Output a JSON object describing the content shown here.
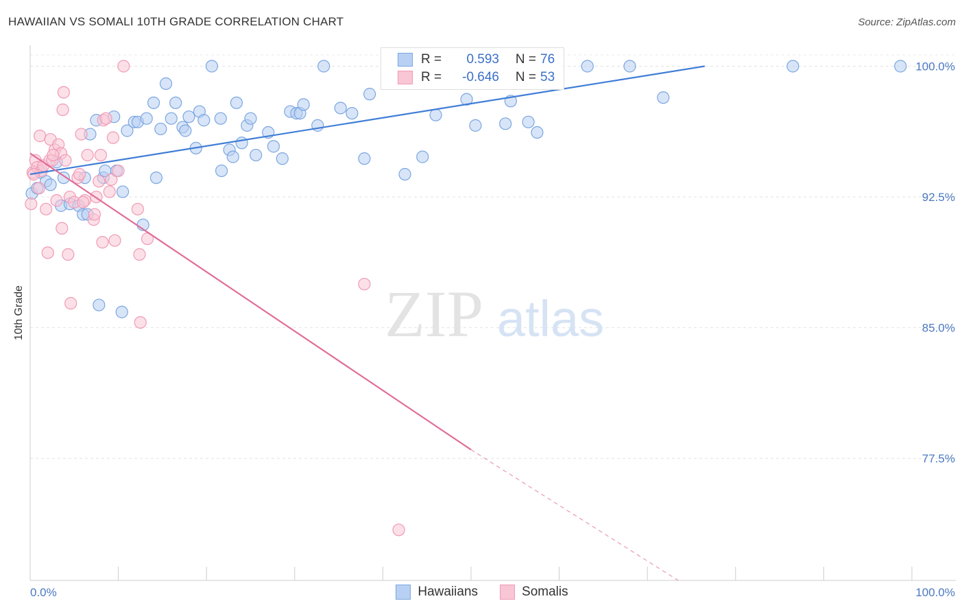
{
  "header": {
    "title": "HAWAIIAN VS SOMALI 10TH GRADE CORRELATION CHART",
    "source": "Source: ZipAtlas.com"
  },
  "watermark": {
    "zip": "ZIP",
    "atlas": "atlas"
  },
  "legend": {
    "rows": [
      {
        "r_label": "R =",
        "r_value": "0.593",
        "n_label": "N =",
        "n_value": "76",
        "color": "#7aa6e0",
        "fill": "#b8d0f3"
      },
      {
        "r_label": "R =",
        "r_value": "-0.646",
        "n_label": "N =",
        "n_value": "53",
        "color": "#f09ab5",
        "fill": "#f9c6d5"
      }
    ]
  },
  "bottom_legend": {
    "items": [
      {
        "label": "Hawaiians"
      },
      {
        "label": "Somalis"
      }
    ]
  },
  "chart_data": {
    "type": "scatter",
    "title": "HAWAIIAN VS SOMALI 10TH GRADE CORRELATION CHART",
    "xlabel": "",
    "ylabel": "10th Grade",
    "xlim": [
      0,
      100
    ],
    "ylim": [
      70.5,
      101.2
    ],
    "x_ticks": [
      "0.0%",
      "100.0%"
    ],
    "y_ticks": [
      {
        "value": 100,
        "label": "100.0%"
      },
      {
        "value": 92.5,
        "label": "92.5%"
      },
      {
        "value": 85,
        "label": "85.0%"
      },
      {
        "value": 77.5,
        "label": "77.5%"
      }
    ],
    "grid": true,
    "legend_position": "top-center",
    "series": [
      {
        "name": "Hawaiians",
        "color": "#3f7dd6",
        "point_fill": "#b8d0f3",
        "point_stroke": "#7aa6e0",
        "trend": {
          "x": [
            0,
            76.5
          ],
          "y": [
            93.8,
            100.0
          ]
        },
        "points": [
          [
            0.2,
            92.7
          ],
          [
            0.8,
            93.0
          ],
          [
            1.2,
            93.9
          ],
          [
            1.8,
            93.4
          ],
          [
            2.3,
            93.2
          ],
          [
            3.0,
            94.5
          ],
          [
            3.5,
            92.0
          ],
          [
            3.8,
            93.6
          ],
          [
            4.5,
            92.1
          ],
          [
            5.5,
            92.0
          ],
          [
            6.0,
            91.5
          ],
          [
            6.2,
            93.6
          ],
          [
            6.8,
            96.1
          ],
          [
            7.5,
            96.9
          ],
          [
            8.3,
            93.6
          ],
          [
            8.5,
            94.0
          ],
          [
            9.5,
            97.1
          ],
          [
            9.8,
            94.0
          ],
          [
            10.5,
            92.8
          ],
          [
            11.0,
            96.3
          ],
          [
            11.8,
            96.8
          ],
          [
            12.2,
            96.8
          ],
          [
            12.8,
            90.9
          ],
          [
            13.2,
            97.0
          ],
          [
            14.0,
            97.9
          ],
          [
            14.3,
            93.6
          ],
          [
            14.8,
            96.4
          ],
          [
            15.4,
            99.0
          ],
          [
            16.0,
            97.0
          ],
          [
            16.5,
            97.9
          ],
          [
            17.3,
            96.5
          ],
          [
            17.6,
            96.3
          ],
          [
            18.0,
            97.1
          ],
          [
            18.8,
            95.3
          ],
          [
            19.2,
            97.4
          ],
          [
            19.7,
            96.9
          ],
          [
            20.6,
            100.0
          ],
          [
            21.6,
            97.0
          ],
          [
            21.7,
            94.0
          ],
          [
            22.6,
            95.2
          ],
          [
            23.0,
            94.8
          ],
          [
            23.4,
            97.9
          ],
          [
            24.0,
            95.6
          ],
          [
            24.6,
            96.6
          ],
          [
            25.0,
            97.0
          ],
          [
            25.6,
            94.9
          ],
          [
            27.0,
            96.2
          ],
          [
            27.6,
            95.4
          ],
          [
            28.6,
            94.7
          ],
          [
            29.5,
            97.4
          ],
          [
            30.2,
            97.3
          ],
          [
            30.6,
            97.3
          ],
          [
            31.0,
            97.8
          ],
          [
            32.6,
            96.6
          ],
          [
            33.3,
            100.0
          ],
          [
            35.2,
            97.6
          ],
          [
            36.5,
            97.3
          ],
          [
            37.9,
            94.7
          ],
          [
            38.5,
            98.4
          ],
          [
            42.5,
            93.8
          ],
          [
            44.5,
            94.8
          ],
          [
            46.0,
            97.2
          ],
          [
            49.5,
            98.1
          ],
          [
            50.5,
            96.6
          ],
          [
            53.9,
            96.7
          ],
          [
            54.5,
            98.0
          ],
          [
            56.5,
            96.8
          ],
          [
            57.5,
            96.2
          ],
          [
            63.2,
            100.0
          ],
          [
            68.0,
            100.0
          ],
          [
            71.8,
            98.2
          ],
          [
            86.5,
            100.0
          ],
          [
            98.7,
            100.0
          ],
          [
            7.8,
            86.3
          ],
          [
            10.4,
            85.9
          ],
          [
            6.5,
            91.5
          ]
        ]
      },
      {
        "name": "Somalis",
        "color": "#e06d98",
        "point_fill": "#f9c6d5",
        "point_stroke": "#f09ab5",
        "trend": {
          "x": [
            0,
            50.0
          ],
          "y": [
            95.0,
            78.0
          ]
        },
        "trend_dashed": {
          "x": [
            50.0,
            73.5
          ],
          "y": [
            78.0,
            70.5
          ]
        },
        "points": [
          [
            0.1,
            92.1
          ],
          [
            0.3,
            93.9
          ],
          [
            0.6,
            94.6
          ],
          [
            0.8,
            94.2
          ],
          [
            1.1,
            96.0
          ],
          [
            1.3,
            94.0
          ],
          [
            1.5,
            94.3
          ],
          [
            1.8,
            91.8
          ],
          [
            2.0,
            89.3
          ],
          [
            2.2,
            94.6
          ],
          [
            2.3,
            95.8
          ],
          [
            2.5,
            94.6
          ],
          [
            2.8,
            95.2
          ],
          [
            3.0,
            92.3
          ],
          [
            3.2,
            95.5
          ],
          [
            3.5,
            95.0
          ],
          [
            3.6,
            90.7
          ],
          [
            3.7,
            97.5
          ],
          [
            3.8,
            98.5
          ],
          [
            4.0,
            94.6
          ],
          [
            4.3,
            89.2
          ],
          [
            4.5,
            92.5
          ],
          [
            4.6,
            86.4
          ],
          [
            5.0,
            92.2
          ],
          [
            5.4,
            93.6
          ],
          [
            5.6,
            93.8
          ],
          [
            5.8,
            96.1
          ],
          [
            6.2,
            92.3
          ],
          [
            6.5,
            94.9
          ],
          [
            7.2,
            91.2
          ],
          [
            7.3,
            91.5
          ],
          [
            7.5,
            92.5
          ],
          [
            7.8,
            93.4
          ],
          [
            8.0,
            94.9
          ],
          [
            8.2,
            89.9
          ],
          [
            8.3,
            96.9
          ],
          [
            8.6,
            97.0
          ],
          [
            9.0,
            92.8
          ],
          [
            9.2,
            93.5
          ],
          [
            9.4,
            95.9
          ],
          [
            9.6,
            90.0
          ],
          [
            10.0,
            94.0
          ],
          [
            10.6,
            100.0
          ],
          [
            12.2,
            91.8
          ],
          [
            12.4,
            89.2
          ],
          [
            12.5,
            85.3
          ],
          [
            13.3,
            90.1
          ],
          [
            37.9,
            87.5
          ],
          [
            41.8,
            73.4
          ],
          [
            0.4,
            93.8
          ],
          [
            1.0,
            93.0
          ],
          [
            2.6,
            94.9
          ],
          [
            6.0,
            92.2
          ]
        ]
      }
    ]
  }
}
